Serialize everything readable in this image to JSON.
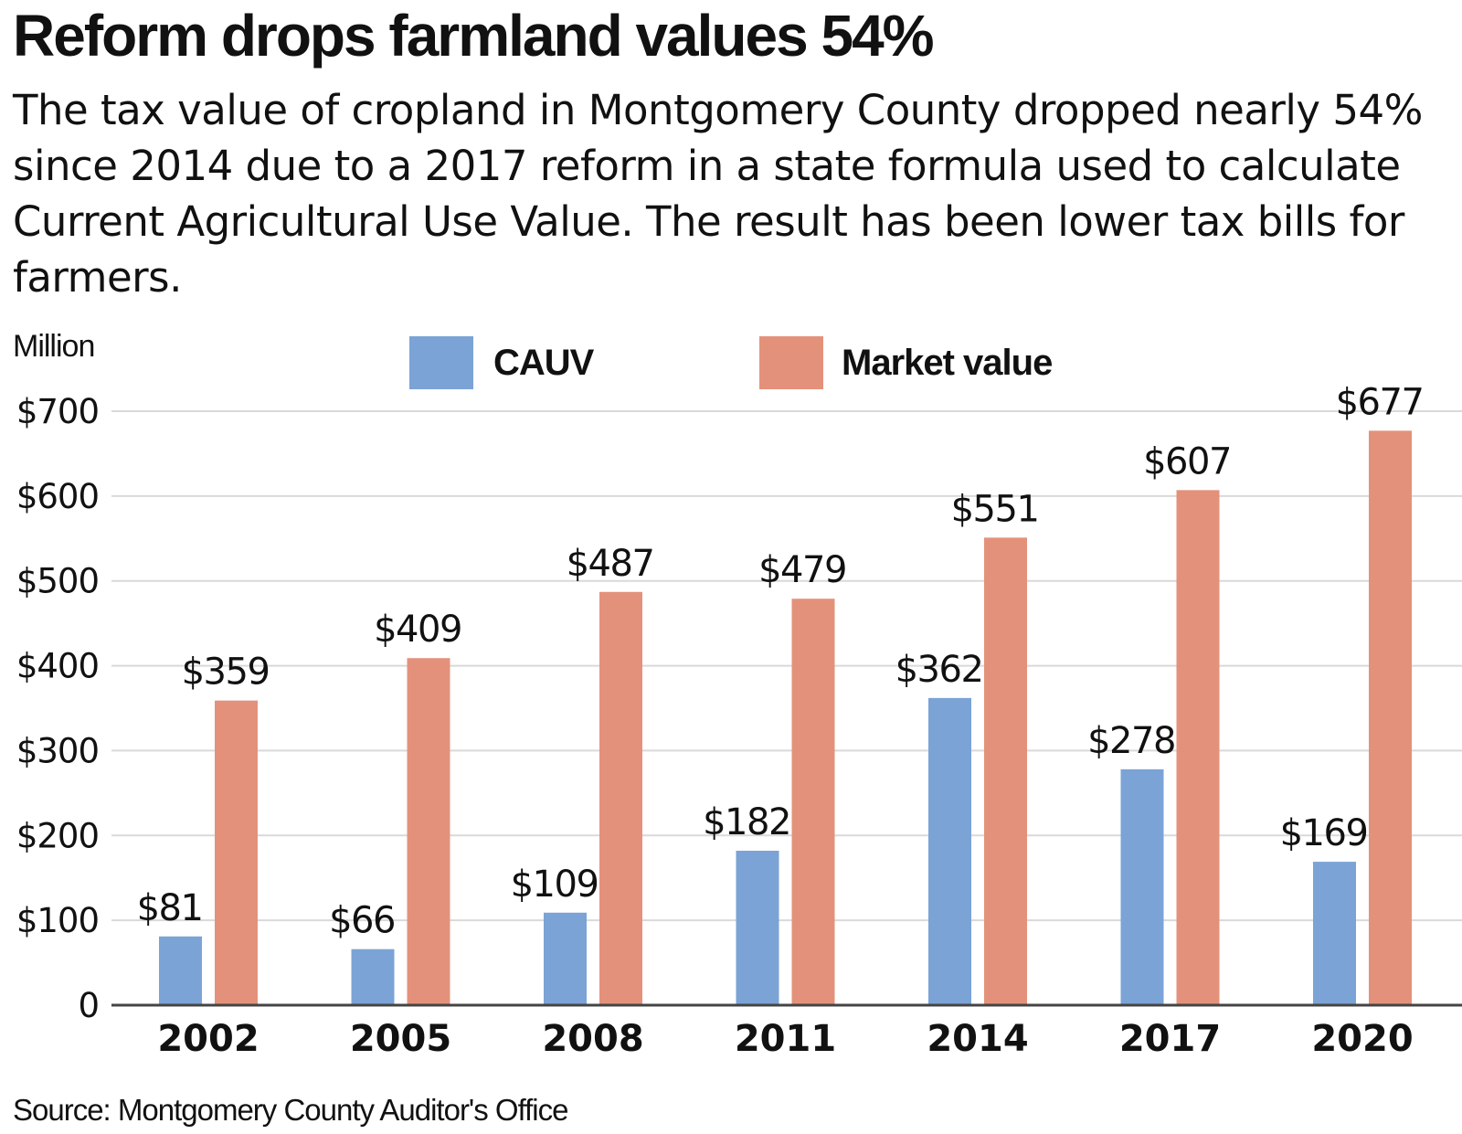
{
  "headline": "Reform drops farmland values 54%",
  "subhead": "The tax value of cropland in Montgomery County dropped nearly 54% since 2014 due to a 2017 reform in a state formula used to calculate Current Agricultural Use Value. The result has been lower tax bills for farmers.",
  "source": "Source: Montgomery County Auditor's Office",
  "colors": {
    "cauv": "#7ba3d6",
    "market": "#e4917b",
    "grid": "#d9d9d9",
    "axis": "#444444"
  },
  "chart_data": {
    "type": "bar",
    "unit_label": "Million",
    "categories": [
      "2002",
      "2005",
      "2008",
      "2011",
      "2014",
      "2017",
      "2020"
    ],
    "series": [
      {
        "name": "CAUV",
        "values": [
          81,
          66,
          109,
          182,
          362,
          278,
          169
        ],
        "labels": [
          "$81",
          "$66",
          "$109",
          "$182",
          "$362",
          "$278",
          "$169"
        ]
      },
      {
        "name": "Market value",
        "values": [
          359,
          409,
          487,
          479,
          551,
          607,
          677
        ],
        "labels": [
          "$359",
          "$409",
          "$487",
          "$479",
          "$551",
          "$607",
          "$677"
        ]
      }
    ],
    "ylim": [
      0,
      700
    ],
    "yticks": [
      0,
      100,
      200,
      300,
      400,
      500,
      600,
      700
    ],
    "ytick_labels": [
      "0",
      "$100",
      "$200",
      "$300",
      "$400",
      "$500",
      "$600",
      "$700"
    ],
    "legend_position": "top",
    "grid": true
  }
}
